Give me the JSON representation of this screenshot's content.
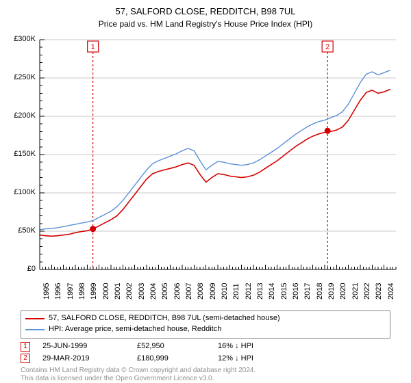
{
  "title": "57, SALFORD CLOSE, REDDITCH, B98 7UL",
  "subtitle": "Price paid vs. HM Land Registry's House Price Index (HPI)",
  "chart": {
    "type": "line",
    "background_color": "#ffffff",
    "plot_border_color": "#000000",
    "grid_color": "#c8c8c8",
    "axis_font_size": 11,
    "title_font_size": 13,
    "x": {
      "min": 1995,
      "max": 2025,
      "ticks": [
        1995,
        1996,
        1997,
        1998,
        1999,
        2000,
        2001,
        2002,
        2003,
        2004,
        2005,
        2006,
        2007,
        2008,
        2009,
        2010,
        2011,
        2012,
        2013,
        2014,
        2015,
        2016,
        2017,
        2018,
        2019,
        2020,
        2021,
        2022,
        2023,
        2024
      ],
      "tick_rotation_deg": -90,
      "minor_tick_step": 0.25
    },
    "y": {
      "min": 0,
      "max": 300000,
      "unit_prefix": "£",
      "unit_suffix": "K",
      "unit_divisor": 1000,
      "ticks": [
        0,
        50000,
        100000,
        150000,
        200000,
        250000,
        300000
      ],
      "minor_tick_step": 10000
    },
    "series": [
      {
        "key": "price_paid",
        "label": "57, SALFORD CLOSE, REDDITCH, B98 7UL (semi-detached house)",
        "color": "#d40000",
        "line_width": 1.6,
        "data": [
          [
            1995.0,
            45000
          ],
          [
            1995.5,
            44000
          ],
          [
            1996.0,
            43500
          ],
          [
            1996.5,
            44000
          ],
          [
            1997.0,
            45000
          ],
          [
            1997.5,
            46000
          ],
          [
            1998.0,
            48000
          ],
          [
            1998.5,
            49500
          ],
          [
            1999.0,
            50500
          ],
          [
            1999.48,
            52950
          ],
          [
            2000.0,
            57000
          ],
          [
            2000.5,
            61000
          ],
          [
            2001.0,
            65000
          ],
          [
            2001.5,
            70000
          ],
          [
            2002.0,
            78000
          ],
          [
            2002.5,
            88000
          ],
          [
            2003.0,
            98000
          ],
          [
            2003.5,
            108000
          ],
          [
            2004.0,
            118000
          ],
          [
            2004.5,
            125000
          ],
          [
            2005.0,
            128000
          ],
          [
            2005.5,
            130000
          ],
          [
            2006.0,
            132000
          ],
          [
            2006.5,
            134000
          ],
          [
            2007.0,
            137000
          ],
          [
            2007.5,
            139000
          ],
          [
            2008.0,
            136000
          ],
          [
            2008.5,
            124000
          ],
          [
            2009.0,
            114000
          ],
          [
            2009.5,
            120000
          ],
          [
            2010.0,
            125000
          ],
          [
            2010.5,
            124000
          ],
          [
            2011.0,
            122000
          ],
          [
            2011.5,
            121000
          ],
          [
            2012.0,
            120000
          ],
          [
            2012.5,
            121000
          ],
          [
            2013.0,
            123000
          ],
          [
            2013.5,
            127000
          ],
          [
            2014.0,
            132000
          ],
          [
            2014.5,
            137000
          ],
          [
            2015.0,
            142000
          ],
          [
            2015.5,
            148000
          ],
          [
            2016.0,
            154000
          ],
          [
            2016.5,
            160000
          ],
          [
            2017.0,
            165000
          ],
          [
            2017.5,
            170000
          ],
          [
            2018.0,
            174000
          ],
          [
            2018.5,
            177000
          ],
          [
            2019.0,
            179000
          ],
          [
            2019.24,
            180999
          ],
          [
            2019.5,
            180000
          ],
          [
            2020.0,
            182000
          ],
          [
            2020.5,
            186000
          ],
          [
            2021.0,
            195000
          ],
          [
            2021.5,
            208000
          ],
          [
            2022.0,
            221000
          ],
          [
            2022.5,
            231000
          ],
          [
            2023.0,
            234000
          ],
          [
            2023.5,
            230000
          ],
          [
            2024.0,
            232000
          ],
          [
            2024.5,
            235000
          ]
        ]
      },
      {
        "key": "hpi",
        "label": "HPI: Average price, semi-detached house, Redditch",
        "color": "#5b8fd6",
        "line_width": 1.4,
        "data": [
          [
            1995.0,
            52000
          ],
          [
            1995.5,
            53000
          ],
          [
            1996.0,
            53500
          ],
          [
            1996.5,
            54500
          ],
          [
            1997.0,
            56000
          ],
          [
            1997.5,
            57500
          ],
          [
            1998.0,
            59000
          ],
          [
            1998.5,
            60500
          ],
          [
            1999.0,
            62000
          ],
          [
            1999.5,
            64000
          ],
          [
            2000.0,
            68000
          ],
          [
            2000.5,
            72000
          ],
          [
            2001.0,
            76000
          ],
          [
            2001.5,
            82000
          ],
          [
            2002.0,
            90000
          ],
          [
            2002.5,
            100000
          ],
          [
            2003.0,
            110000
          ],
          [
            2003.5,
            120000
          ],
          [
            2004.0,
            130000
          ],
          [
            2004.5,
            138000
          ],
          [
            2005.0,
            142000
          ],
          [
            2005.5,
            145000
          ],
          [
            2006.0,
            148000
          ],
          [
            2006.5,
            151000
          ],
          [
            2007.0,
            155000
          ],
          [
            2007.5,
            158000
          ],
          [
            2008.0,
            155000
          ],
          [
            2008.5,
            142000
          ],
          [
            2009.0,
            130000
          ],
          [
            2009.5,
            136000
          ],
          [
            2010.0,
            141000
          ],
          [
            2010.5,
            140000
          ],
          [
            2011.0,
            138000
          ],
          [
            2011.5,
            137000
          ],
          [
            2012.0,
            136000
          ],
          [
            2012.5,
            137000
          ],
          [
            2013.0,
            139000
          ],
          [
            2013.5,
            143000
          ],
          [
            2014.0,
            148000
          ],
          [
            2014.5,
            153000
          ],
          [
            2015.0,
            158000
          ],
          [
            2015.5,
            164000
          ],
          [
            2016.0,
            170000
          ],
          [
            2016.5,
            176000
          ],
          [
            2017.0,
            181000
          ],
          [
            2017.5,
            186000
          ],
          [
            2018.0,
            190000
          ],
          [
            2018.5,
            193000
          ],
          [
            2019.0,
            195000
          ],
          [
            2019.5,
            198000
          ],
          [
            2020.0,
            201000
          ],
          [
            2020.5,
            206000
          ],
          [
            2021.0,
            216000
          ],
          [
            2021.5,
            230000
          ],
          [
            2022.0,
            244000
          ],
          [
            2022.5,
            255000
          ],
          [
            2023.0,
            258000
          ],
          [
            2023.5,
            254000
          ],
          [
            2024.0,
            257000
          ],
          [
            2024.5,
            260000
          ]
        ]
      }
    ],
    "events": [
      {
        "n": "1",
        "date": "25-JUN-1999",
        "x": 1999.48,
        "price_value": 52950,
        "price": "£52,950",
        "delta": "16% ↓ HPI",
        "border_color": "#d40000",
        "vline_color": "#d40000",
        "vline_dash": "3,3",
        "marker_fill": "#d40000"
      },
      {
        "n": "2",
        "date": "29-MAR-2019",
        "x": 2019.24,
        "price_value": 180999,
        "price": "£180,999",
        "delta": "12% ↓ HPI",
        "border_color": "#d40000",
        "vline_color": "#d40000",
        "vline_dash": "3,3",
        "marker_fill": "#d40000"
      }
    ]
  },
  "footer": {
    "line1": "Contains HM Land Registry data © Crown copyright and database right 2024.",
    "line2": "This data is licensed under the Open Government Licence v3.0."
  }
}
